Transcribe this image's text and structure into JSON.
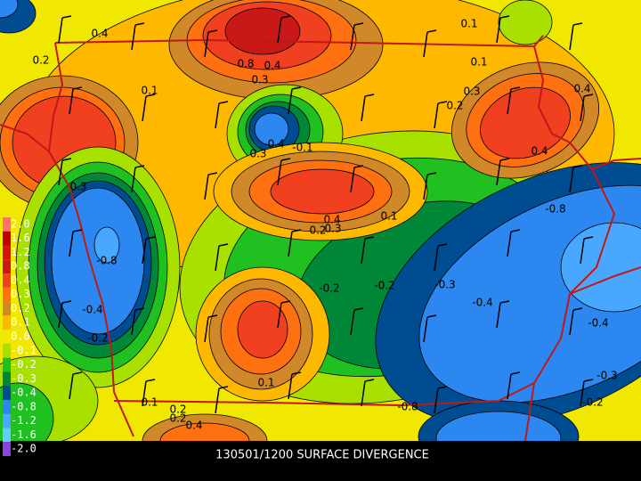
{
  "title": "130501/1200 SURFACE DIVERGENCE",
  "legend": [
    {
      "label": "2.0",
      "color": "#ff7070"
    },
    {
      "label": "1.6",
      "color": "#c00000"
    },
    {
      "label": "1.2",
      "color": "#d81010"
    },
    {
      "label": "0.8",
      "color": "#c81818"
    },
    {
      "label": "0.4",
      "color": "#f04020"
    },
    {
      "label": "0.3",
      "color": "#ff7010"
    },
    {
      "label": "0.2",
      "color": "#d08828"
    },
    {
      "label": "0.1",
      "color": "#ffb800"
    },
    {
      "label": "0.0",
      "color": "#f0e800"
    },
    {
      "label": "-0.1",
      "color": "#a8e000"
    },
    {
      "label": "-0.2",
      "color": "#20c020"
    },
    {
      "label": "-0.3",
      "color": "#008838"
    },
    {
      "label": "-0.4",
      "color": "#004c90"
    },
    {
      "label": "-0.8",
      "color": "#2c88f0"
    },
    {
      "label": "-1.2",
      "color": "#48a8ff"
    },
    {
      "label": "-1.6",
      "color": "#60d0f8"
    },
    {
      "label": "-2.0",
      "color": "#9040e0"
    }
  ],
  "contour_labels": [
    "0.4",
    "0.8",
    "0.4",
    "0.3",
    "0.1",
    "0.1",
    "0.1",
    "0.3",
    "0.2",
    "0.4",
    "-0.4",
    "-0.1",
    "0.3",
    "-0.8",
    "-0.4",
    "-0.8",
    "-0.2",
    "-0.2",
    "-0.2",
    "-0.3",
    "-0.4",
    "0.4",
    "0.3",
    "0.2",
    "0.1",
    "0.4",
    "0.3",
    "0.2",
    "-0.8",
    "-0.4",
    "-0.3",
    "-0.2",
    "0.1",
    "0.2",
    "0.2",
    "0.4",
    "0.1"
  ]
}
